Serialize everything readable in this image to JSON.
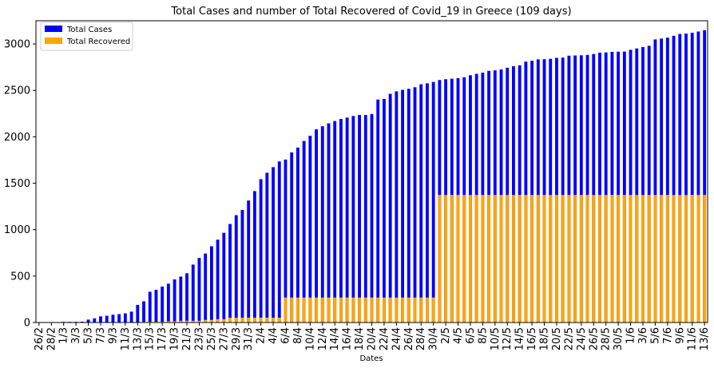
{
  "chart_data": {
    "type": "bar",
    "stacked": false,
    "title": "Total Cases and number of Total Recovered of Covid_19 in Greece (109 days)",
    "xlabel": "Dates",
    "ylabel": "",
    "ylim": [
      0,
      3250
    ],
    "yticks": [
      0,
      500,
      1000,
      1500,
      2000,
      2500,
      3000
    ],
    "grid": false,
    "legend_position": "top-left",
    "categories": [
      "26/2",
      "27/2",
      "28/2",
      "29/2",
      "1/3",
      "2/3",
      "3/3",
      "4/3",
      "5/3",
      "6/3",
      "7/3",
      "8/3",
      "9/3",
      "10/3",
      "11/3",
      "12/3",
      "13/3",
      "14/3",
      "15/3",
      "16/3",
      "17/3",
      "18/3",
      "19/3",
      "20/3",
      "21/3",
      "22/3",
      "23/3",
      "24/3",
      "25/3",
      "26/3",
      "27/3",
      "28/3",
      "29/3",
      "30/3",
      "31/3",
      "1/4",
      "2/4",
      "3/4",
      "4/4",
      "5/4",
      "6/4",
      "7/4",
      "8/4",
      "9/4",
      "10/4",
      "11/4",
      "12/4",
      "13/4",
      "14/4",
      "15/4",
      "16/4",
      "17/4",
      "18/4",
      "19/4",
      "20/4",
      "21/4",
      "22/4",
      "23/4",
      "24/4",
      "25/4",
      "26/4",
      "27/4",
      "28/4",
      "29/4",
      "30/4",
      "1/5",
      "2/5",
      "3/5",
      "4/5",
      "5/5",
      "6/5",
      "7/5",
      "8/5",
      "9/5",
      "10/5",
      "11/5",
      "12/5",
      "13/5",
      "14/5",
      "15/5",
      "16/5",
      "17/5",
      "18/5",
      "19/5",
      "20/5",
      "21/5",
      "22/5",
      "23/5",
      "24/5",
      "25/5",
      "26/5",
      "27/5",
      "28/5",
      "29/5",
      "30/5",
      "31/5",
      "1/6",
      "2/6",
      "3/6",
      "4/6",
      "5/6",
      "6/6",
      "7/6",
      "8/6",
      "9/6",
      "10/6",
      "11/6",
      "12/6",
      "13/6"
    ],
    "series": [
      {
        "name": "Total Cases",
        "color": "#0000ff",
        "values": [
          1,
          1,
          3,
          4,
          7,
          7,
          7,
          9,
          31,
          45,
          66,
          73,
          84,
          90,
          99,
          117,
          190,
          228,
          331,
          352,
          387,
          418,
          464,
          495,
          530,
          624,
          695,
          743,
          821,
          892,
          966,
          1061,
          1156,
          1212,
          1314,
          1415,
          1544,
          1613,
          1673,
          1735,
          1755,
          1832,
          1884,
          1955,
          2011,
          2081,
          2114,
          2145,
          2170,
          2192,
          2207,
          2224,
          2235,
          2235,
          2245,
          2401,
          2408,
          2463,
          2490,
          2506,
          2517,
          2534,
          2566,
          2576,
          2591,
          2612,
          2620,
          2626,
          2632,
          2642,
          2663,
          2678,
          2691,
          2710,
          2716,
          2726,
          2744,
          2760,
          2770,
          2810,
          2819,
          2834,
          2836,
          2840,
          2850,
          2853,
          2874,
          2876,
          2878,
          2882,
          2892,
          2906,
          2909,
          2915,
          2917,
          2918,
          2937,
          2952,
          2967,
          2980,
          3049,
          3058,
          3068,
          3088,
          3108,
          3112,
          3121,
          3134,
          3148
        ]
      },
      {
        "name": "Total Recovered",
        "color": "#ffa500",
        "values": [
          0,
          0,
          0,
          0,
          0,
          0,
          0,
          0,
          0,
          0,
          0,
          0,
          0,
          0,
          0,
          0,
          0,
          8,
          8,
          8,
          8,
          14,
          14,
          19,
          19,
          19,
          19,
          28,
          28,
          36,
          36,
          52,
          52,
          52,
          52,
          52,
          52,
          52,
          52,
          52,
          269,
          269,
          269,
          269,
          269,
          269,
          269,
          269,
          269,
          269,
          269,
          269,
          269,
          269,
          269,
          269,
          269,
          269,
          269,
          269,
          269,
          269,
          269,
          269,
          269,
          1374,
          1374,
          1374,
          1374,
          1374,
          1374,
          1374,
          1374,
          1374,
          1374,
          1374,
          1374,
          1374,
          1374,
          1374,
          1374,
          1374,
          1374,
          1374,
          1374,
          1374,
          1374,
          1374,
          1374,
          1374,
          1374,
          1374,
          1374,
          1374,
          1374,
          1374,
          1374,
          1374,
          1374,
          1374,
          1374,
          1374,
          1374,
          1374,
          1374,
          1374,
          1374,
          1374,
          1374
        ]
      }
    ]
  }
}
